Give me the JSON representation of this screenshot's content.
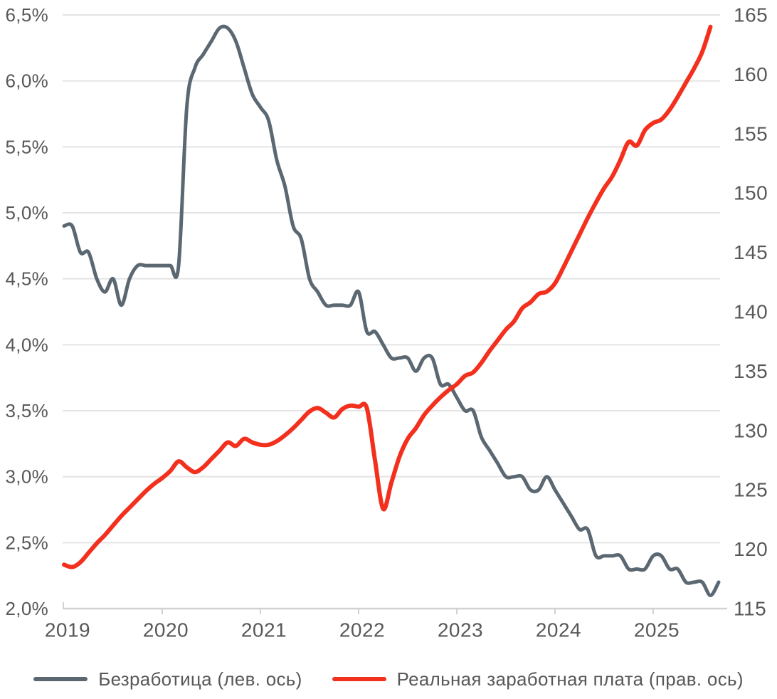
{
  "chart_data": {
    "type": "line",
    "title": "",
    "frequency": "monthly",
    "start_month": "2019-01",
    "x_axis": {
      "tick_labels": [
        "2019",
        "2020",
        "2021",
        "2022",
        "2023",
        "2024",
        "2025"
      ]
    },
    "left_axis": {
      "min": 2.0,
      "max": 6.5,
      "step": 0.5,
      "tick_labels": [
        "6,5%",
        "6,0%",
        "5,5%",
        "5,0%",
        "4,5%",
        "4,0%",
        "3,5%",
        "3,0%",
        "2,5%",
        "2,0%"
      ]
    },
    "right_axis": {
      "min": 115,
      "max": 165,
      "step": 5,
      "tick_labels": [
        "165",
        "160",
        "155",
        "150",
        "145",
        "140",
        "135",
        "130",
        "125",
        "120",
        "115"
      ]
    },
    "grid": "horizontal",
    "legend_position": "bottom",
    "series": [
      {
        "name": "Безработица (лев. ось)",
        "axis": "left",
        "color": "#5b6872",
        "stroke_width": 5,
        "values": [
          4.9,
          4.9,
          4.7,
          4.7,
          4.5,
          4.4,
          4.5,
          4.3,
          4.5,
          4.6,
          4.6,
          4.6,
          4.6,
          4.6,
          4.6,
          5.8,
          6.1,
          6.2,
          6.3,
          6.4,
          6.4,
          6.3,
          6.1,
          5.9,
          5.8,
          5.7,
          5.4,
          5.2,
          4.9,
          4.8,
          4.5,
          4.4,
          4.3,
          4.3,
          4.3,
          4.3,
          4.4,
          4.1,
          4.1,
          4.0,
          3.9,
          3.9,
          3.9,
          3.8,
          3.9,
          3.9,
          3.7,
          3.7,
          3.6,
          3.5,
          3.5,
          3.3,
          3.2,
          3.1,
          3.0,
          3.0,
          3.0,
          2.9,
          2.9,
          3.0,
          2.9,
          2.8,
          2.7,
          2.6,
          2.6,
          2.4,
          2.4,
          2.4,
          2.4,
          2.3,
          2.3,
          2.3,
          2.4,
          2.4,
          2.3,
          2.3,
          2.2,
          2.2,
          2.2,
          2.1,
          2.2
        ]
      },
      {
        "name": "Реальная заработная плата (прав. ось)",
        "axis": "right",
        "color": "#f3301e",
        "stroke_width": 6,
        "values": [
          118.7,
          118.5,
          118.9,
          119.7,
          120.5,
          121.2,
          122.0,
          122.8,
          123.5,
          124.2,
          124.9,
          125.5,
          126.0,
          126.6,
          127.4,
          126.9,
          126.5,
          126.9,
          127.6,
          128.3,
          129.0,
          128.7,
          129.3,
          129.0,
          128.8,
          128.8,
          129.1,
          129.6,
          130.2,
          130.9,
          131.6,
          131.9,
          131.5,
          131.1,
          131.8,
          132.1,
          132.0,
          131.9,
          127.5,
          123.4,
          125.6,
          127.8,
          129.3,
          130.2,
          131.3,
          132.1,
          132.8,
          133.4,
          133.9,
          134.6,
          134.9,
          135.7,
          136.7,
          137.6,
          138.5,
          139.2,
          140.3,
          140.8,
          141.5,
          141.7,
          142.4,
          143.7,
          145.1,
          146.5,
          147.9,
          149.2,
          150.4,
          151.4,
          152.8,
          154.3,
          154.0,
          155.3,
          155.9,
          156.2,
          157.0,
          158.1,
          159.3,
          160.5,
          161.9,
          164.0
        ]
      }
    ],
    "colors": {
      "grid": "#e4e4e4",
      "axis": "#d2d2d2",
      "label_text": "#58585b"
    }
  },
  "legend": {
    "items": [
      {
        "label": "Безработица (лев. ось)"
      },
      {
        "label": "Реальная заработная плата (прав. ось)"
      }
    ]
  }
}
